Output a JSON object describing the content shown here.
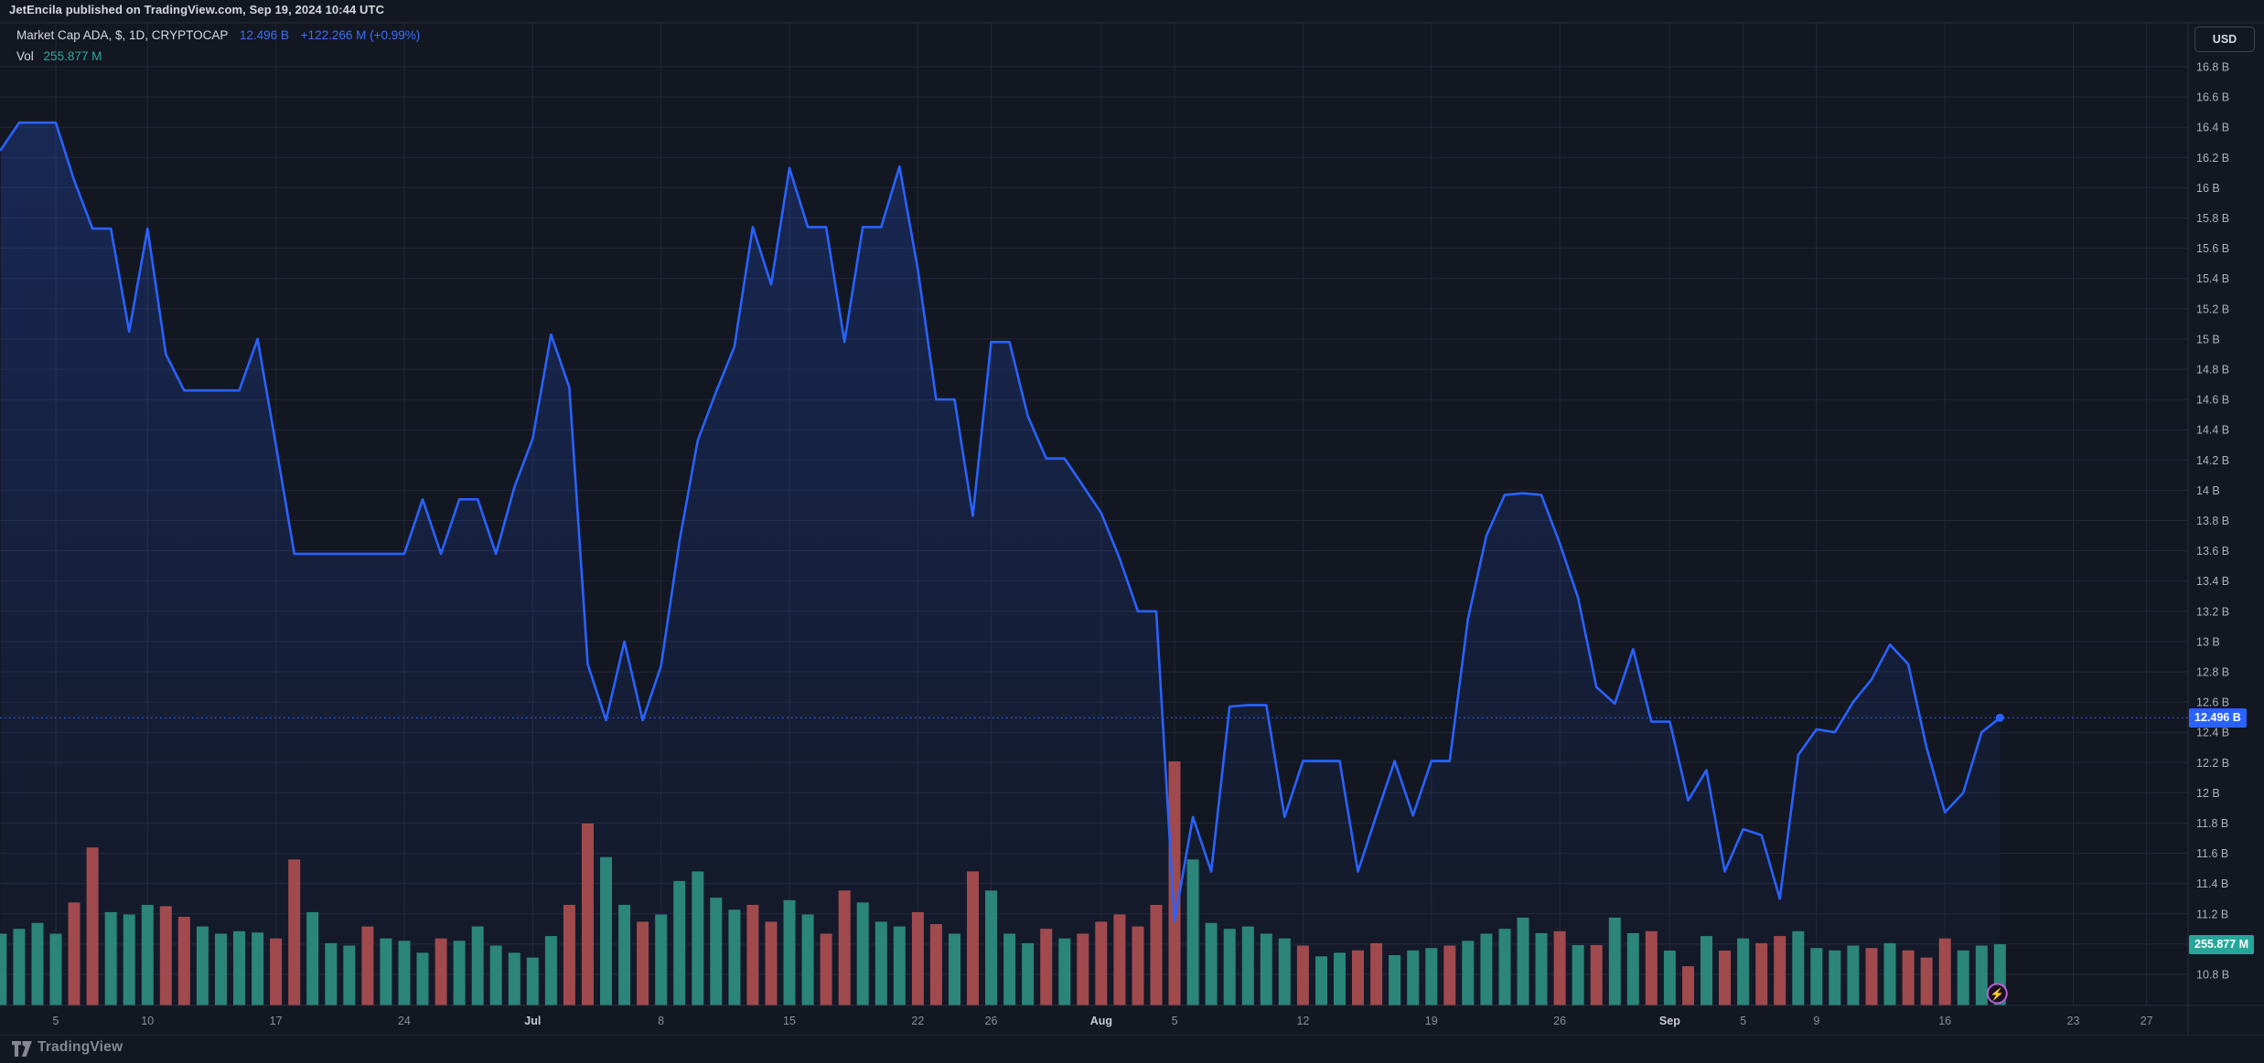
{
  "header": {
    "publish_text": "JetEncila published on TradingView.com, Sep 19, 2024 10:44 UTC"
  },
  "legend": {
    "symbol": "Market Cap ADA, $, 1D, CRYPTOCAP",
    "last_value": "12.496 B",
    "change": "+122.266 M (+0.99%)",
    "vol_label": "Vol",
    "vol_value": "255.877 M"
  },
  "axis": {
    "currency": "USD",
    "last_price_label": "12.496 B",
    "last_volume_label": "255.877 M"
  },
  "footer": {
    "brand": "TradingView"
  },
  "colors": {
    "background": "#131722",
    "grid": "#222736",
    "line_blue": "#2962ff",
    "area_top": "rgba(41,98,255,0.24)",
    "area_bottom": "rgba(41,98,255,0.02)",
    "vol_green": "#2b8579",
    "vol_red": "#a04a4e",
    "badge_blue": "#2962ff",
    "badge_teal": "#26a69a",
    "axis_text": "#aeb1ba",
    "x_day_text": "#8a8e99",
    "x_month_text": "#c8cbd2",
    "separator": "#2a2e39",
    "boost_purple": "#bb5ed1"
  },
  "chart_data": {
    "type": "area",
    "title": "Market Cap ADA, $, 1D, CRYPTOCAP",
    "ylabel": "USD (billions)",
    "ylim": [
      10.7,
      16.9
    ],
    "y_ticks_b": {
      "max": 16.8,
      "min": 10.8,
      "step": 0.2
    },
    "legend_position": "top-left",
    "grid": true,
    "current_value_b": 12.496,
    "x_ticks": [
      [
        "5",
        3,
        0
      ],
      [
        "10",
        8,
        0
      ],
      [
        "17",
        15,
        0
      ],
      [
        "24",
        22,
        0
      ],
      [
        "Jul",
        29,
        1
      ],
      [
        "8",
        36,
        0
      ],
      [
        "15",
        43,
        0
      ],
      [
        "22",
        50,
        0
      ],
      [
        "26",
        54,
        0
      ],
      [
        "Aug",
        60,
        1
      ],
      [
        "5",
        64,
        0
      ],
      [
        "12",
        71,
        0
      ],
      [
        "19",
        78,
        0
      ],
      [
        "26",
        85,
        0
      ],
      [
        "Sep",
        91,
        1
      ],
      [
        "5",
        95,
        0
      ],
      [
        "9",
        99,
        0
      ],
      [
        "16",
        106,
        0
      ],
      [
        "23",
        113,
        0
      ],
      [
        "27",
        117,
        0
      ]
    ],
    "series": [
      {
        "name": "Market Cap (USD B)",
        "points": [
          [
            "Jun 2",
            16.25
          ],
          [
            "Jun 3",
            16.43
          ],
          [
            "Jun 4",
            16.43
          ],
          [
            "Jun 5",
            16.43
          ],
          [
            "Jun 6",
            16.05
          ],
          [
            "Jun 7",
            15.73
          ],
          [
            "Jun 8",
            15.73
          ],
          [
            "Jun 9",
            15.05
          ],
          [
            "Jun 10",
            15.73
          ],
          [
            "Jun 11",
            14.9
          ],
          [
            "Jun 12",
            14.66
          ],
          [
            "Jun 13",
            14.66
          ],
          [
            "Jun 14",
            14.66
          ],
          [
            "Jun 15",
            14.66
          ],
          [
            "Jun 16",
            15.0
          ],
          [
            "Jun 17",
            14.3
          ],
          [
            "Jun 18",
            13.58
          ],
          [
            "Jun 19",
            13.58
          ],
          [
            "Jun 20",
            13.58
          ],
          [
            "Jun 21",
            13.58
          ],
          [
            "Jun 22",
            13.58
          ],
          [
            "Jun 23",
            13.58
          ],
          [
            "Jun 24",
            13.58
          ],
          [
            "Jun 25",
            13.94
          ],
          [
            "Jun 26",
            13.58
          ],
          [
            "Jun 27",
            13.94
          ],
          [
            "Jun 28",
            13.94
          ],
          [
            "Jun 29",
            13.58
          ],
          [
            "Jun 30",
            14.02
          ],
          [
            "Jul 1",
            14.34
          ],
          [
            "Jul 2",
            15.03
          ],
          [
            "Jul 3",
            14.68
          ],
          [
            "Jul 4",
            12.85
          ],
          [
            "Jul 5",
            12.48
          ],
          [
            "Jul 6",
            13.0
          ],
          [
            "Jul 7",
            12.48
          ],
          [
            "Jul 8",
            12.84
          ],
          [
            "Jul 9",
            13.66
          ],
          [
            "Jul 10",
            14.33
          ],
          [
            "Jul 11",
            14.65
          ],
          [
            "Jul 12",
            14.95
          ],
          [
            "Jul 13",
            15.74
          ],
          [
            "Jul 14",
            15.36
          ],
          [
            "Jul 15",
            16.13
          ],
          [
            "Jul 16",
            15.74
          ],
          [
            "Jul 17",
            15.74
          ],
          [
            "Jul 18",
            14.98
          ],
          [
            "Jul 19",
            15.74
          ],
          [
            "Jul 20",
            15.74
          ],
          [
            "Jul 21",
            16.14
          ],
          [
            "Jul 22",
            15.46
          ],
          [
            "Jul 23",
            14.6
          ],
          [
            "Jul 24",
            14.6
          ],
          [
            "Jul 25",
            13.83
          ],
          [
            "Jul 26",
            14.98
          ],
          [
            "Jul 27",
            14.98
          ],
          [
            "Jul 28",
            14.49
          ],
          [
            "Jul 29",
            14.21
          ],
          [
            "Jul 30",
            14.21
          ],
          [
            "Jul 31",
            14.03
          ],
          [
            "Aug 1",
            13.85
          ],
          [
            "Aug 2",
            13.55
          ],
          [
            "Aug 3",
            13.2
          ],
          [
            "Aug 4",
            13.2
          ],
          [
            "Aug 5",
            11.15
          ],
          [
            "Aug 6",
            11.84
          ],
          [
            "Aug 7",
            11.48
          ],
          [
            "Aug 8",
            12.57
          ],
          [
            "Aug 9",
            12.58
          ],
          [
            "Aug 10",
            12.58
          ],
          [
            "Aug 11",
            11.84
          ],
          [
            "Aug 12",
            12.21
          ],
          [
            "Aug 13",
            12.21
          ],
          [
            "Aug 14",
            12.21
          ],
          [
            "Aug 15",
            11.48
          ],
          [
            "Aug 16",
            11.85
          ],
          [
            "Aug 17",
            12.21
          ],
          [
            "Aug 18",
            11.85
          ],
          [
            "Aug 19",
            12.21
          ],
          [
            "Aug 20",
            12.21
          ],
          [
            "Aug 21",
            13.15
          ],
          [
            "Aug 22",
            13.7
          ],
          [
            "Aug 23",
            13.97
          ],
          [
            "Aug 24",
            13.98
          ],
          [
            "Aug 25",
            13.97
          ],
          [
            "Aug 26",
            13.65
          ],
          [
            "Aug 27",
            13.29
          ],
          [
            "Aug 28",
            12.7
          ],
          [
            "Aug 29",
            12.59
          ],
          [
            "Aug 30",
            12.95
          ],
          [
            "Aug 31",
            12.47
          ],
          [
            "Sep 1",
            12.47
          ],
          [
            "Sep 2",
            11.95
          ],
          [
            "Sep 3",
            12.15
          ],
          [
            "Sep 4",
            11.48
          ],
          [
            "Sep 5",
            11.76
          ],
          [
            "Sep 6",
            11.72
          ],
          [
            "Sep 7",
            11.3
          ],
          [
            "Sep 8",
            12.25
          ],
          [
            "Sep 9",
            12.42
          ],
          [
            "Sep 10",
            12.4
          ],
          [
            "Sep 11",
            12.6
          ],
          [
            "Sep 12",
            12.75
          ],
          [
            "Sep 13",
            12.98
          ],
          [
            "Sep 14",
            12.85
          ],
          [
            "Sep 15",
            12.3
          ],
          [
            "Sep 16",
            11.87
          ],
          [
            "Sep 17",
            12.0
          ],
          [
            "Sep 18",
            12.4
          ],
          [
            "Sep 19",
            12.496
          ]
        ]
      }
    ],
    "volume_m": [
      [
        "Jun 2",
        300,
        "g"
      ],
      [
        "Jun 3",
        320,
        "g"
      ],
      [
        "Jun 4",
        345,
        "g"
      ],
      [
        "Jun 5",
        300,
        "g"
      ],
      [
        "Jun 6",
        430,
        "r"
      ],
      [
        "Jun 7",
        660,
        "r"
      ],
      [
        "Jun 8",
        390,
        "g"
      ],
      [
        "Jun 9",
        380,
        "g"
      ],
      [
        "Jun 10",
        420,
        "g"
      ],
      [
        "Jun 11",
        415,
        "r"
      ],
      [
        "Jun 12",
        370,
        "r"
      ],
      [
        "Jun 13",
        330,
        "g"
      ],
      [
        "Jun 14",
        300,
        "g"
      ],
      [
        "Jun 15",
        310,
        "g"
      ],
      [
        "Jun 16",
        305,
        "g"
      ],
      [
        "Jun 17",
        280,
        "r"
      ],
      [
        "Jun 18",
        610,
        "r"
      ],
      [
        "Jun 19",
        390,
        "g"
      ],
      [
        "Jun 20",
        260,
        "g"
      ],
      [
        "Jun 21",
        250,
        "g"
      ],
      [
        "Jun 22",
        330,
        "r"
      ],
      [
        "Jun 23",
        280,
        "g"
      ],
      [
        "Jun 24",
        270,
        "g"
      ],
      [
        "Jun 25",
        220,
        "g"
      ],
      [
        "Jun 26",
        280,
        "r"
      ],
      [
        "Jun 27",
        270,
        "g"
      ],
      [
        "Jun 28",
        330,
        "g"
      ],
      [
        "Jun 29",
        250,
        "g"
      ],
      [
        "Jun 30",
        220,
        "g"
      ],
      [
        "Jul 1",
        200,
        "g"
      ],
      [
        "Jul 2",
        290,
        "g"
      ],
      [
        "Jul 3",
        420,
        "r"
      ],
      [
        "Jul 4",
        760,
        "r"
      ],
      [
        "Jul 5",
        620,
        "g"
      ],
      [
        "Jul 6",
        420,
        "g"
      ],
      [
        "Jul 7",
        350,
        "r"
      ],
      [
        "Jul 8",
        380,
        "g"
      ],
      [
        "Jul 9",
        520,
        "g"
      ],
      [
        "Jul 10",
        560,
        "g"
      ],
      [
        "Jul 11",
        450,
        "g"
      ],
      [
        "Jul 12",
        400,
        "g"
      ],
      [
        "Jul 13",
        420,
        "r"
      ],
      [
        "Jul 14",
        350,
        "r"
      ],
      [
        "Jul 15",
        440,
        "g"
      ],
      [
        "Jul 16",
        380,
        "g"
      ],
      [
        "Jul 17",
        300,
        "r"
      ],
      [
        "Jul 18",
        480,
        "r"
      ],
      [
        "Jul 19",
        430,
        "g"
      ],
      [
        "Jul 20",
        350,
        "g"
      ],
      [
        "Jul 21",
        330,
        "g"
      ],
      [
        "Jul 22",
        390,
        "r"
      ],
      [
        "Jul 23",
        340,
        "r"
      ],
      [
        "Jul 24",
        300,
        "g"
      ],
      [
        "Jul 25",
        560,
        "r"
      ],
      [
        "Jul 26",
        480,
        "g"
      ],
      [
        "Jul 27",
        300,
        "g"
      ],
      [
        "Jul 28",
        260,
        "g"
      ],
      [
        "Jul 29",
        320,
        "r"
      ],
      [
        "Jul 30",
        280,
        "g"
      ],
      [
        "Jul 31",
        300,
        "r"
      ],
      [
        "Aug 1",
        350,
        "r"
      ],
      [
        "Aug 2",
        380,
        "r"
      ],
      [
        "Aug 3",
        330,
        "r"
      ],
      [
        "Aug 4",
        420,
        "r"
      ],
      [
        "Aug 5",
        1020,
        "r"
      ],
      [
        "Aug 6",
        610,
        "g"
      ],
      [
        "Aug 7",
        345,
        "g"
      ],
      [
        "Aug 8",
        320,
        "g"
      ],
      [
        "Aug 9",
        330,
        "g"
      ],
      [
        "Aug 10",
        300,
        "g"
      ],
      [
        "Aug 11",
        280,
        "g"
      ],
      [
        "Aug 12",
        250,
        "r"
      ],
      [
        "Aug 13",
        205,
        "g"
      ],
      [
        "Aug 14",
        220,
        "g"
      ],
      [
        "Aug 15",
        230,
        "r"
      ],
      [
        "Aug 16",
        260,
        "r"
      ],
      [
        "Aug 17",
        210,
        "g"
      ],
      [
        "Aug 18",
        230,
        "g"
      ],
      [
        "Aug 19",
        240,
        "g"
      ],
      [
        "Aug 20",
        250,
        "r"
      ],
      [
        "Aug 21",
        270,
        "g"
      ],
      [
        "Aug 22",
        300,
        "g"
      ],
      [
        "Aug 23",
        320,
        "g"
      ],
      [
        "Aug 24",
        367,
        "g"
      ],
      [
        "Aug 25",
        302,
        "g"
      ],
      [
        "Aug 26",
        310,
        "r"
      ],
      [
        "Aug 27",
        252,
        "g"
      ],
      [
        "Aug 28",
        252,
        "r"
      ],
      [
        "Aug 29",
        367,
        "g"
      ],
      [
        "Aug 30",
        302,
        "g"
      ],
      [
        "Aug 31",
        310,
        "r"
      ],
      [
        "Sep 1",
        229,
        "g"
      ],
      [
        "Sep 2",
        164,
        "r"
      ],
      [
        "Sep 3",
        290,
        "g"
      ],
      [
        "Sep 4",
        229,
        "r"
      ],
      [
        "Sep 5",
        280,
        "g"
      ],
      [
        "Sep 6",
        260,
        "r"
      ],
      [
        "Sep 7",
        290,
        "r"
      ],
      [
        "Sep 8",
        310,
        "g"
      ],
      [
        "Sep 9",
        240,
        "g"
      ],
      [
        "Sep 10",
        230,
        "g"
      ],
      [
        "Sep 11",
        250,
        "g"
      ],
      [
        "Sep 12",
        240,
        "r"
      ],
      [
        "Sep 13",
        260,
        "g"
      ],
      [
        "Sep 14",
        230,
        "r"
      ],
      [
        "Sep 15",
        200,
        "r"
      ],
      [
        "Sep 16",
        280,
        "r"
      ],
      [
        "Sep 17",
        230,
        "g"
      ],
      [
        "Sep 18",
        250,
        "g"
      ],
      [
        "Sep 19",
        256,
        "g"
      ]
    ]
  }
}
